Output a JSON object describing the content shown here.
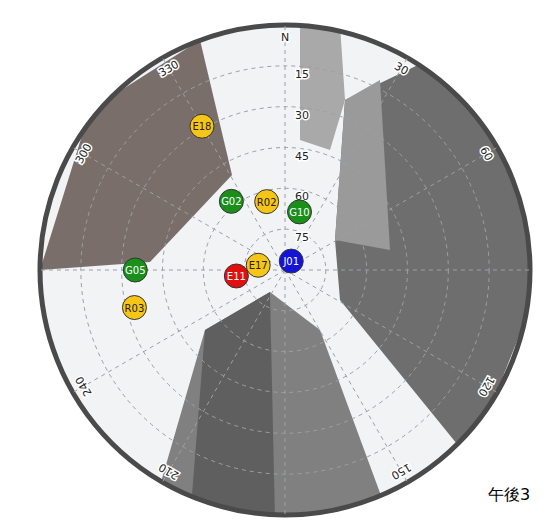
{
  "chart_data": {
    "type": "scatter",
    "title": "",
    "xlim": [
      0,
      360
    ],
    "xticks": [
      {
        "value": 0,
        "label": "N"
      },
      30,
      60,
      120,
      150,
      210,
      240,
      300,
      330
    ],
    "ylim": [
      0,
      90
    ],
    "yticks": [
      15,
      30,
      45,
      60,
      75
    ],
    "grid": true,
    "satellites": [
      {
        "label": "E18",
        "color": "#f5c518",
        "azimuth": 330,
        "elevation": 29
      },
      {
        "label": "G02",
        "color": "#1a8f1a",
        "azimuth": 322,
        "elevation": 58
      },
      {
        "label": "R02",
        "color": "#f5c518",
        "azimuth": 345,
        "elevation": 64
      },
      {
        "label": "G10",
        "color": "#1a8f1a",
        "azimuth": 14,
        "elevation": 68
      },
      {
        "label": "J01",
        "color": "#1414d8",
        "azimuth": 35,
        "elevation": 86
      },
      {
        "label": "E17",
        "color": "#f5c518",
        "azimuth": 280,
        "elevation": 80
      },
      {
        "label": "E11",
        "color": "#e01010",
        "azimuth": 263,
        "elevation": 72
      },
      {
        "label": "G05",
        "color": "#1a8f1a",
        "azimuth": 270,
        "elevation": 35
      },
      {
        "label": "R03",
        "color": "#f5c518",
        "azimuth": 256,
        "elevation": 33
      }
    ],
    "annotations": [
      "午後3"
    ]
  }
}
